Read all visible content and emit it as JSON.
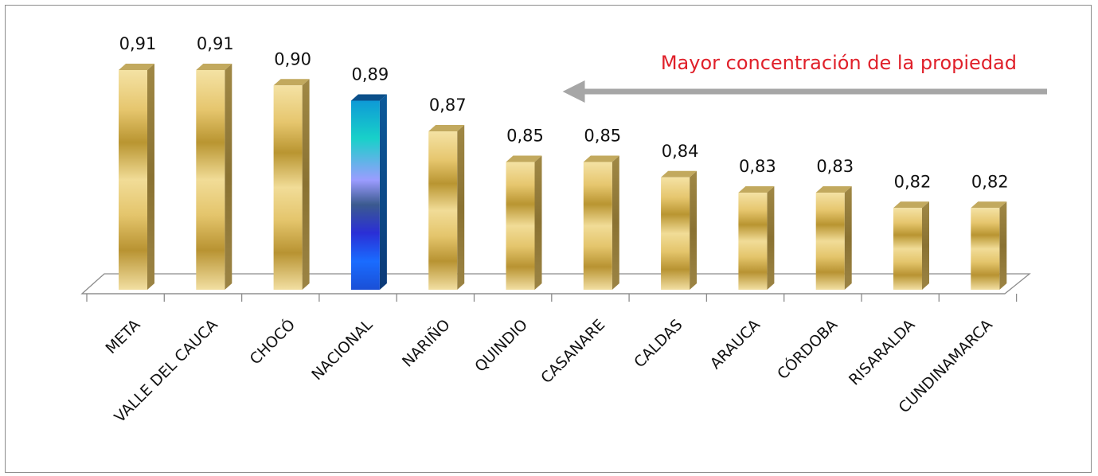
{
  "chart_data": {
    "type": "bar",
    "title": "",
    "xlabel": "",
    "ylabel": "",
    "categories": [
      "META",
      "VALLE DEL CAUCA",
      "CHOCÓ",
      "NACIONAL",
      "NARIÑO",
      "QUINDIO",
      "CASANARE",
      "CALDAS",
      "ARAUCA",
      "CÓRDOBA",
      "RISARALDA",
      "CUNDINAMARCA"
    ],
    "values": [
      0.91,
      0.91,
      0.9,
      0.89,
      0.87,
      0.85,
      0.85,
      0.84,
      0.83,
      0.83,
      0.82,
      0.82
    ],
    "value_labels": [
      "0,91",
      "0,91",
      "0,90",
      "0,89",
      "0,87",
      "0,85",
      "0,85",
      "0,84",
      "0,83",
      "0,83",
      "0,82",
      "0,82"
    ],
    "highlight_category": "NACIONAL",
    "grid": false,
    "legend": "none",
    "bar_color": "#c9a94a",
    "highlight_color": "#1a6fe0",
    "annotation": {
      "text": "Mayor concentración de la propiedad",
      "color": "#e0202a",
      "arrow_direction": "left",
      "arrow_color": "#a6a6a6"
    }
  }
}
